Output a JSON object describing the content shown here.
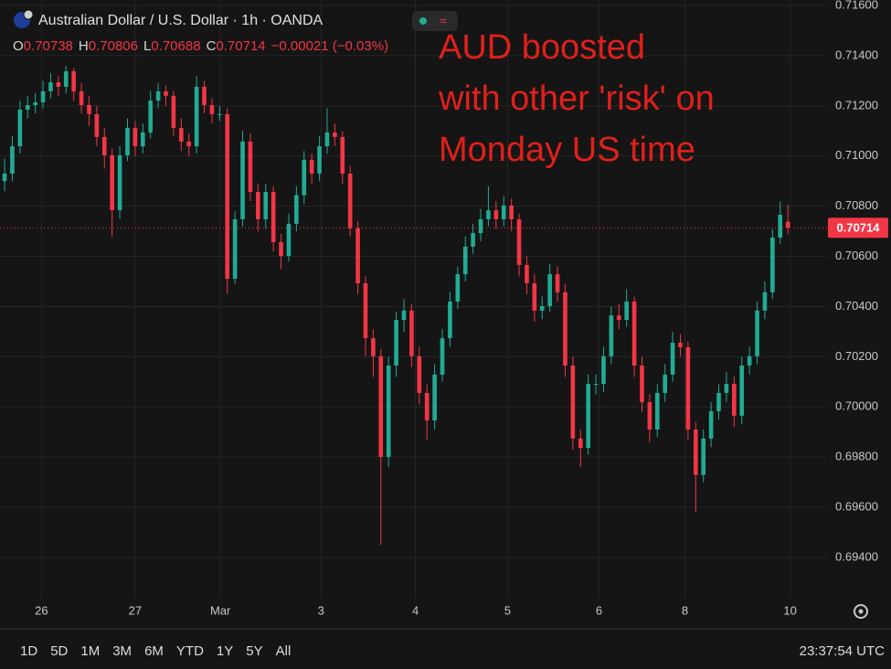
{
  "chart_data": {
    "type": "candlestick",
    "title": "Australian Dollar / U.S. Dollar · 1h · OANDA",
    "ohlc_header": [
      {
        "letter": "O",
        "value": "0.70738"
      },
      {
        "letter": "H",
        "value": "0.70806"
      },
      {
        "letter": "L",
        "value": "0.70688"
      },
      {
        "letter": "C",
        "value": "0.70714"
      }
    ],
    "change": "−0.00021 (−0.03%)",
    "annotation": [
      "AUD boosted",
      "with other 'risk' on",
      "Monday US time"
    ],
    "up_color": "#22ab94",
    "down_color": "#f23645",
    "annotation_color": "#e0201a",
    "grid": true,
    "open": [
      0.709,
      0.7093,
      0.71039,
      0.71185,
      0.71203,
      0.71214,
      0.71258,
      0.71294,
      0.71276,
      0.71338,
      0.71258,
      0.71203,
      0.71167,
      0.71076,
      0.71003,
      0.70784,
      0.71003,
      0.71112,
      0.71039,
      0.71094,
      0.71221,
      0.71258,
      0.7124,
      0.71112,
      0.71058,
      0.71039,
      0.71276,
      0.71203,
      0.71167,
      0.71167,
      0.70511,
      0.70748,
      0.71058,
      0.70857,
      0.70748,
      0.70857,
      0.70657,
      0.70602,
      0.7073,
      0.70844,
      0.70985,
      0.7093,
      0.71039,
      0.71094,
      0.71076,
      0.7093,
      0.70712,
      0.70493,
      0.70274,
      0.70202,
      0.69801,
      0.70165,
      0.70347,
      0.70384,
      0.70202,
      0.70056,
      0.69946,
      0.70129,
      0.70274,
      0.7042,
      0.70529,
      0.70639,
      0.70693,
      0.70748,
      0.70784,
      0.70748,
      0.70803,
      0.70748,
      0.70566,
      0.70493,
      0.70384,
      0.70402,
      0.70529,
      0.70457,
      0.70165,
      0.69874,
      0.69837,
      0.70092,
      0.70092,
      0.70202,
      0.70365,
      0.70347,
      0.7042,
      0.70165,
      0.70019,
      0.6991,
      0.70056,
      0.70129,
      0.70256,
      0.70238,
      0.6991,
      0.69729,
      0.69874,
      0.69983,
      0.70056,
      0.70092,
      0.69965,
      0.70165,
      0.70202,
      0.70384,
      0.70457,
      0.70675,
      0.70738
    ],
    "high": [
      0.7099,
      0.7108,
      0.7122,
      0.7124,
      0.7125,
      0.713,
      0.7133,
      0.7132,
      0.7136,
      0.7135,
      0.7129,
      0.7124,
      0.712,
      0.7111,
      0.7103,
      0.7104,
      0.7115,
      0.7114,
      0.7113,
      0.7126,
      0.7129,
      0.7128,
      0.7126,
      0.7115,
      0.7109,
      0.7132,
      0.713,
      0.7123,
      0.712,
      0.7119,
      0.7078,
      0.711,
      0.7109,
      0.7089,
      0.7089,
      0.7088,
      0.7069,
      0.7077,
      0.7088,
      0.7102,
      0.7101,
      0.7108,
      0.7119,
      0.7113,
      0.711,
      0.7096,
      0.7074,
      0.7052,
      0.7031,
      0.7023,
      0.702,
      0.7038,
      0.7043,
      0.7041,
      0.7024,
      0.7009,
      0.7017,
      0.7031,
      0.7046,
      0.7056,
      0.7068,
      0.7073,
      0.7079,
      0.7088,
      0.7082,
      0.7084,
      0.7083,
      0.7077,
      0.706,
      0.7053,
      0.7044,
      0.7057,
      0.7056,
      0.7049,
      0.702,
      0.6991,
      0.7013,
      0.7013,
      0.7024,
      0.704,
      0.7041,
      0.7047,
      0.7044,
      0.702,
      0.7005,
      0.7009,
      0.7017,
      0.703,
      0.7029,
      0.7026,
      0.6994,
      0.6991,
      0.7002,
      0.7009,
      0.7014,
      0.7012,
      0.702,
      0.7024,
      0.7042,
      0.705,
      0.7071,
      0.7082,
      0.70806
    ],
    "low": [
      0.7086,
      0.709,
      0.7101,
      0.7115,
      0.7117,
      0.7119,
      0.7123,
      0.7124,
      0.7125,
      0.7122,
      0.7117,
      0.7112,
      0.7104,
      0.7095,
      0.7068,
      0.7075,
      0.7098,
      0.71,
      0.7101,
      0.7107,
      0.7119,
      0.712,
      0.7108,
      0.7102,
      0.71,
      0.7101,
      0.7117,
      0.7113,
      0.7114,
      0.7045,
      0.7049,
      0.7072,
      0.7082,
      0.707,
      0.7071,
      0.7062,
      0.7055,
      0.7058,
      0.707,
      0.7081,
      0.7089,
      0.709,
      0.7101,
      0.7104,
      0.7089,
      0.7068,
      0.7045,
      0.702,
      0.7012,
      0.6945,
      0.6976,
      0.7012,
      0.703,
      0.7016,
      0.7001,
      0.6987,
      0.6991,
      0.701,
      0.7024,
      0.7039,
      0.705,
      0.7061,
      0.7066,
      0.7072,
      0.7071,
      0.7072,
      0.707,
      0.7052,
      0.7045,
      0.7034,
      0.7035,
      0.7038,
      0.7042,
      0.7012,
      0.6983,
      0.6976,
      0.6981,
      0.7005,
      0.7006,
      0.7017,
      0.7031,
      0.7032,
      0.7012,
      0.6998,
      0.6986,
      0.6988,
      0.7002,
      0.701,
      0.702,
      0.6987,
      0.6958,
      0.697,
      0.6984,
      0.6995,
      0.7002,
      0.6992,
      0.6993,
      0.7013,
      0.7017,
      0.7035,
      0.7043,
      0.7065,
      0.70688
    ],
    "close": [
      0.7093,
      0.71039,
      0.71185,
      0.71203,
      0.71214,
      0.71258,
      0.71294,
      0.71276,
      0.71338,
      0.71258,
      0.71203,
      0.71167,
      0.71076,
      0.71003,
      0.70784,
      0.71003,
      0.71112,
      0.71039,
      0.71094,
      0.71221,
      0.71258,
      0.7124,
      0.71112,
      0.71058,
      0.71039,
      0.71276,
      0.71203,
      0.71167,
      0.71167,
      0.70511,
      0.70748,
      0.71058,
      0.70857,
      0.70748,
      0.70857,
      0.70657,
      0.70602,
      0.7073,
      0.70844,
      0.70985,
      0.7093,
      0.71039,
      0.71094,
      0.71076,
      0.7093,
      0.70712,
      0.70493,
      0.70274,
      0.70202,
      0.69801,
      0.70165,
      0.70347,
      0.70384,
      0.70202,
      0.70056,
      0.69946,
      0.70129,
      0.70274,
      0.7042,
      0.70529,
      0.70639,
      0.70693,
      0.70748,
      0.70784,
      0.70748,
      0.70803,
      0.70748,
      0.70566,
      0.70493,
      0.70384,
      0.70402,
      0.70529,
      0.70457,
      0.70165,
      0.69874,
      0.69837,
      0.70092,
      0.70092,
      0.70202,
      0.70365,
      0.70347,
      0.7042,
      0.70165,
      0.70019,
      0.6991,
      0.70056,
      0.70129,
      0.70256,
      0.70238,
      0.6991,
      0.69729,
      0.69874,
      0.69983,
      0.70056,
      0.70092,
      0.69965,
      0.70165,
      0.70202,
      0.70384,
      0.70457,
      0.70675,
      0.70766,
      0.70714
    ],
    "last_price_label": "0.70714",
    "xlim": [
      -0.6,
      107.1
    ],
    "xticks": [
      {
        "value": 4.8,
        "label": "26"
      },
      {
        "value": 17,
        "label": "27"
      },
      {
        "value": 28.1,
        "label": "Mar"
      },
      {
        "value": 41.2,
        "label": "3"
      },
      {
        "value": 53.5,
        "label": "4"
      },
      {
        "value": 65.5,
        "label": "5"
      },
      {
        "value": 77.4,
        "label": "6"
      },
      {
        "value": 88.6,
        "label": "8"
      },
      {
        "value": 102.3,
        "label": "10"
      }
    ],
    "ylim": [
      0.69236,
      0.71622
    ],
    "yticks": [
      {
        "value": 0.694,
        "label": "0.69400"
      },
      {
        "value": 0.696,
        "label": "0.69600"
      },
      {
        "value": 0.698,
        "label": "0.69800"
      },
      {
        "value": 0.7,
        "label": "0.70000"
      },
      {
        "value": 0.702,
        "label": "0.70200"
      },
      {
        "value": 0.704,
        "label": "0.70400"
      },
      {
        "value": 0.706,
        "label": "0.70600"
      },
      {
        "value": 0.708,
        "label": "0.70800"
      },
      {
        "value": 0.71,
        "label": "0.71000"
      },
      {
        "value": 0.712,
        "label": "0.71200"
      },
      {
        "value": 0.714,
        "label": "0.71400"
      },
      {
        "value": 0.716,
        "label": "0.71600"
      }
    ],
    "timeframes": [
      "1D",
      "5D",
      "1M",
      "3M",
      "6M",
      "YTD",
      "1Y",
      "5Y",
      "All"
    ],
    "clock": "23:37:54 UTC"
  }
}
